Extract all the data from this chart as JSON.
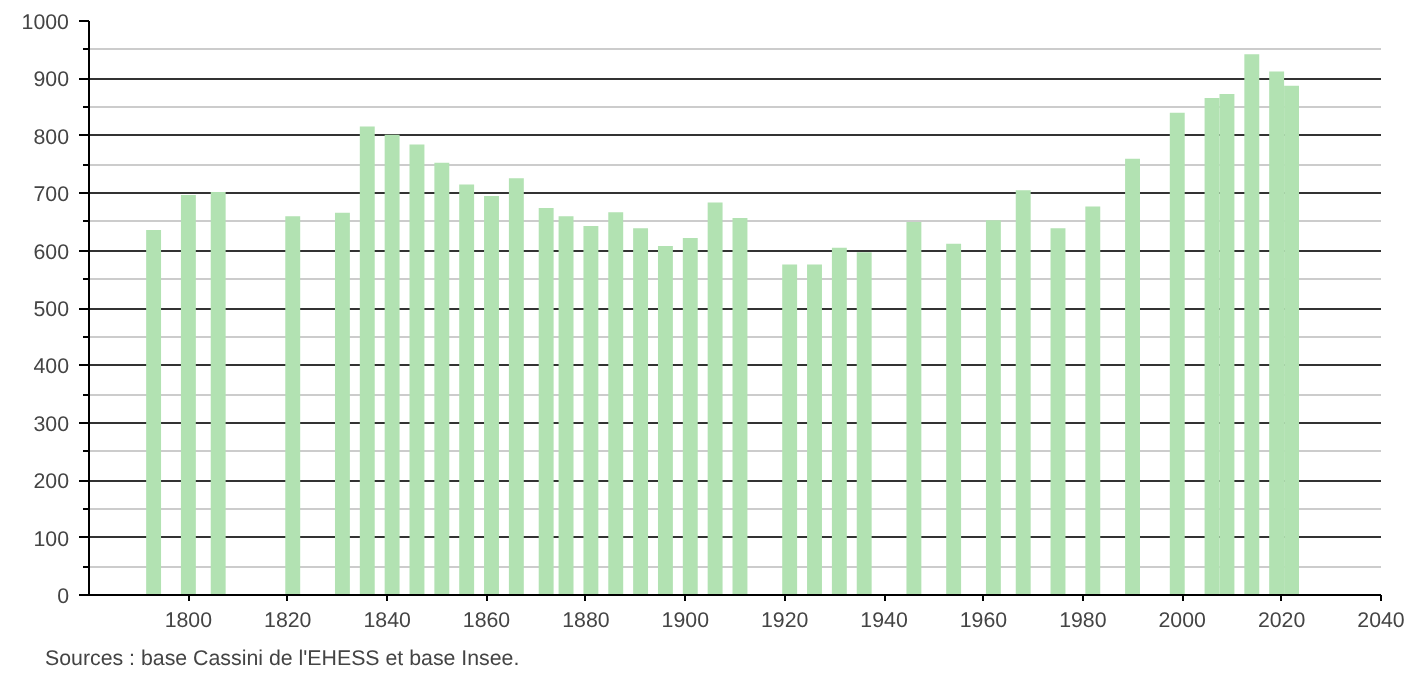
{
  "chart_data": {
    "type": "bar",
    "x": [
      1793,
      1800,
      1806,
      1821,
      1831,
      1836,
      1841,
      1846,
      1851,
      1856,
      1861,
      1866,
      1872,
      1876,
      1881,
      1886,
      1891,
      1896,
      1901,
      1906,
      1911,
      1921,
      1926,
      1931,
      1936,
      1946,
      1954,
      1962,
      1968,
      1975,
      1982,
      1990,
      1999,
      2006,
      2009,
      2014,
      2019,
      2022
    ],
    "values": [
      636,
      697,
      702,
      660,
      666,
      816,
      802,
      785,
      753,
      715,
      695,
      726,
      674,
      660,
      643,
      667,
      639,
      608,
      622,
      684,
      657,
      576,
      576,
      605,
      597,
      650,
      612,
      653,
      705,
      639,
      677,
      760,
      840,
      866,
      873,
      942,
      912,
      887
    ],
    "color": "#b2e2b2",
    "xlim": [
      1780,
      2040
    ],
    "xticks": [
      1800,
      1820,
      1840,
      1860,
      1880,
      1900,
      1920,
      1940,
      1960,
      1980,
      2000,
      2020,
      2040
    ],
    "ylim": [
      0,
      1000
    ],
    "yticks": [
      0,
      100,
      200,
      300,
      400,
      500,
      600,
      700,
      800,
      900,
      1000
    ],
    "grid": "y",
    "annotations": [
      "Sources : base Cassini de l'EHESS et base Insee."
    ]
  }
}
